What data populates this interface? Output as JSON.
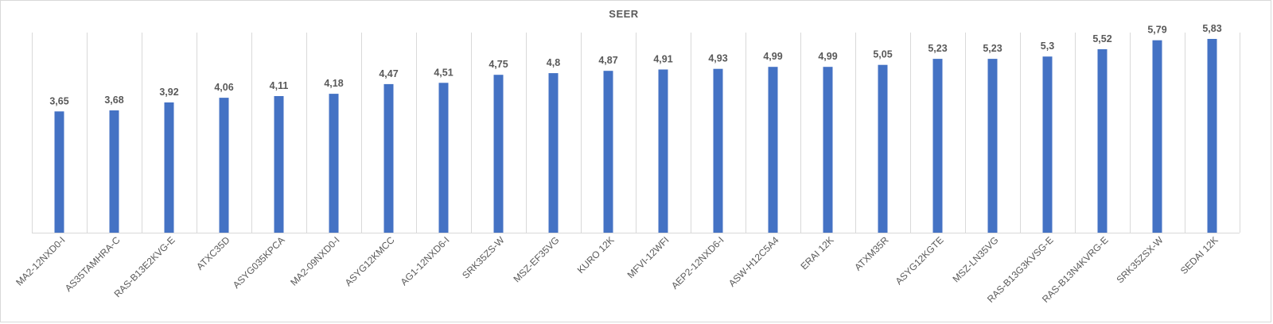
{
  "chart_data": {
    "type": "bar",
    "title": "SEER",
    "xlabel": "",
    "ylabel": "",
    "categories": [
      "MA2-12NXD0-I",
      "AS35TAMHRA-C",
      "RAS-B13E2KVG-E",
      "ATXC35D",
      "ASYG035KPCA",
      "MA2-09NXD0-I",
      "ASYG12KMCC",
      "AG1-12NXD6-I",
      "SRK35ZS-W",
      "MSZ-EF35VG",
      "KURO 12K",
      "MFVI-12WFI",
      "AEP2-12NXD6-I",
      "ASW-H12C5A4",
      "ERAI 12K",
      "ATXM35R",
      "ASYG12KGTE",
      "MSZ-LN35VG",
      "RAS-B13G3KVSG-E",
      "RAS-B13N4KVRG-E",
      "SRK35ZSX-W",
      "SEDAI 12K"
    ],
    "values": [
      3.65,
      3.68,
      3.92,
      4.06,
      4.11,
      4.18,
      4.47,
      4.51,
      4.75,
      4.8,
      4.87,
      4.91,
      4.93,
      4.99,
      4.99,
      5.05,
      5.23,
      5.23,
      5.3,
      5.52,
      5.79,
      5.83
    ],
    "data_labels": [
      "3,65",
      "3,68",
      "3,92",
      "4,06",
      "4,11",
      "4,18",
      "4,47",
      "4,51",
      "4,75",
      "4,8",
      "4,87",
      "4,91",
      "4,93",
      "4,99",
      "4,99",
      "5,05",
      "5,23",
      "5,23",
      "5,3",
      "5,52",
      "5,79",
      "5,83"
    ],
    "ylim": [
      0,
      7
    ],
    "grid": "vertical",
    "legend": "none",
    "bar_color": "#4472C4"
  }
}
